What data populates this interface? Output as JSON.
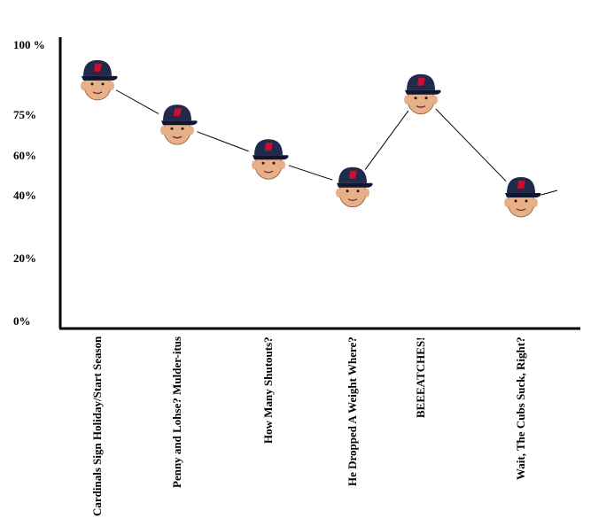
{
  "chart_data": {
    "type": "line",
    "title": "",
    "xlabel": "",
    "ylabel": "",
    "marker": "manager-face-in-cap",
    "categories": [
      "Cardinals Sign Holiday/Start Season",
      "Penny and Lohse? Mulder-itus",
      "How Many Shutouts?",
      "He Dropped A Weight Where?",
      "BEEEATCHES!",
      "Wait, The Cubs Suck, Right?"
    ],
    "y_tick_labels": [
      "100 %",
      "75%",
      "60%",
      "40%",
      "20%",
      "0%"
    ],
    "y_tick_values": [
      100,
      75,
      60,
      40,
      20,
      0
    ],
    "values": [
      88,
      72,
      59,
      45,
      83,
      40
    ],
    "trailing_trend": "up",
    "ylim": [
      0,
      100
    ],
    "grid": false,
    "colors": {
      "line": "#000000",
      "axis": "#000000",
      "cap": "#1f2a4d",
      "cap_logo": "#c8102e",
      "skin": "#e8b088"
    }
  }
}
